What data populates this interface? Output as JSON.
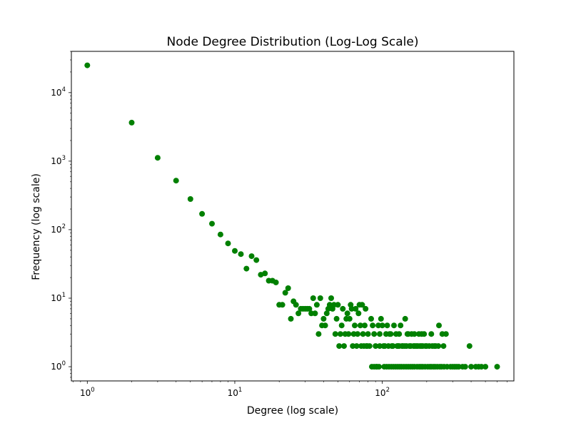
{
  "chart_data": {
    "type": "scatter",
    "title": "Node Degree Distribution (Log-Log Scale)",
    "xlabel": "Degree (log scale)",
    "ylabel": "Frequency (log scale)",
    "x_scale": "log",
    "y_scale": "log",
    "xlim": [
      0.78,
      780
    ],
    "ylim": [
      0.62,
      40000
    ],
    "grid": false,
    "marker_color": "#008000",
    "x_ticks": [
      {
        "base": "10",
        "exp": "0",
        "value": 1
      },
      {
        "base": "10",
        "exp": "1",
        "value": 10
      },
      {
        "base": "10",
        "exp": "2",
        "value": 100
      }
    ],
    "y_ticks": [
      {
        "base": "10",
        "exp": "0",
        "value": 1
      },
      {
        "base": "10",
        "exp": "1",
        "value": 10
      },
      {
        "base": "10",
        "exp": "2",
        "value": 100
      },
      {
        "base": "10",
        "exp": "3",
        "value": 1000
      },
      {
        "base": "10",
        "exp": "4",
        "value": 10000
      }
    ],
    "points": [
      [
        1,
        25000
      ],
      [
        2,
        3650
      ],
      [
        3,
        1120
      ],
      [
        4,
        520
      ],
      [
        5,
        280
      ],
      [
        6,
        170
      ],
      [
        7,
        122
      ],
      [
        8,
        85
      ],
      [
        9,
        63
      ],
      [
        10,
        49
      ],
      [
        11,
        44
      ],
      [
        12,
        27
      ],
      [
        13,
        41
      ],
      [
        14,
        36
      ],
      [
        15,
        22
      ],
      [
        16,
        23
      ],
      [
        17,
        18
      ],
      [
        18,
        18
      ],
      [
        19,
        17
      ],
      [
        20,
        8
      ],
      [
        21,
        8
      ],
      [
        22,
        12
      ],
      [
        23,
        14
      ],
      [
        24,
        5
      ],
      [
        25,
        9
      ],
      [
        26,
        8
      ],
      [
        27,
        6
      ],
      [
        28,
        7
      ],
      [
        29,
        7
      ],
      [
        30,
        7
      ],
      [
        31,
        7
      ],
      [
        32,
        7
      ],
      [
        33,
        6
      ],
      [
        34,
        10
      ],
      [
        35,
        6
      ],
      [
        36,
        8
      ],
      [
        37,
        3
      ],
      [
        38,
        10
      ],
      [
        39,
        4
      ],
      [
        40,
        5
      ],
      [
        41,
        4
      ],
      [
        42,
        6
      ],
      [
        43,
        7
      ],
      [
        44,
        8
      ],
      [
        45,
        10
      ],
      [
        46,
        7
      ],
      [
        47,
        8
      ],
      [
        48,
        3
      ],
      [
        49,
        5
      ],
      [
        50,
        8
      ],
      [
        51,
        2
      ],
      [
        52,
        3
      ],
      [
        53,
        4
      ],
      [
        54,
        7
      ],
      [
        55,
        2
      ],
      [
        56,
        3
      ],
      [
        57,
        5
      ],
      [
        58,
        6
      ],
      [
        59,
        3
      ],
      [
        60,
        5
      ],
      [
        61,
        8
      ],
      [
        62,
        7
      ],
      [
        63,
        2
      ],
      [
        64,
        3
      ],
      [
        65,
        4
      ],
      [
        66,
        7
      ],
      [
        67,
        2
      ],
      [
        68,
        3
      ],
      [
        69,
        6
      ],
      [
        70,
        8
      ],
      [
        71,
        4
      ],
      [
        72,
        2
      ],
      [
        73,
        8
      ],
      [
        74,
        3
      ],
      [
        75,
        2
      ],
      [
        76,
        4
      ],
      [
        77,
        7
      ],
      [
        78,
        2
      ],
      [
        79,
        2
      ],
      [
        80,
        3
      ],
      [
        82,
        2
      ],
      [
        84,
        5
      ],
      [
        86,
        4
      ],
      [
        88,
        3
      ],
      [
        90,
        2
      ],
      [
        92,
        1
      ],
      [
        94,
        4
      ],
      [
        96,
        2
      ],
      [
        98,
        5
      ],
      [
        100,
        4
      ],
      [
        104,
        2
      ],
      [
        108,
        4
      ],
      [
        112,
        3
      ],
      [
        116,
        2
      ],
      [
        120,
        4
      ],
      [
        124,
        3
      ],
      [
        128,
        2
      ],
      [
        133,
        4
      ],
      [
        138,
        2
      ],
      [
        143,
        5
      ],
      [
        148,
        3
      ],
      [
        153,
        2
      ],
      [
        158,
        3
      ],
      [
        163,
        2
      ],
      [
        170,
        2
      ],
      [
        177,
        3
      ],
      [
        184,
        2
      ],
      [
        192,
        3
      ],
      [
        200,
        2
      ],
      [
        208,
        2
      ],
      [
        218,
        2
      ],
      [
        230,
        2
      ],
      [
        242,
        4
      ],
      [
        255,
        3
      ],
      [
        270,
        3
      ],
      [
        290,
        1
      ],
      [
        320,
        1
      ],
      [
        350,
        1
      ],
      [
        390,
        2
      ],
      [
        85,
        1
      ],
      [
        88,
        1
      ],
      [
        91,
        1
      ],
      [
        95,
        1
      ],
      [
        103,
        1
      ],
      [
        107,
        1
      ],
      [
        111,
        1
      ],
      [
        115,
        1
      ],
      [
        119,
        1
      ],
      [
        123,
        1
      ],
      [
        127,
        1
      ],
      [
        131,
        1
      ],
      [
        135,
        1
      ],
      [
        140,
        1
      ],
      [
        145,
        1
      ],
      [
        150,
        1
      ],
      [
        155,
        1
      ],
      [
        160,
        1
      ],
      [
        165,
        1
      ],
      [
        172,
        1
      ],
      [
        178,
        1
      ],
      [
        183,
        1
      ],
      [
        188,
        1
      ],
      [
        195,
        1
      ],
      [
        203,
        1
      ],
      [
        210,
        1
      ],
      [
        215,
        1
      ],
      [
        222,
        1
      ],
      [
        228,
        1
      ],
      [
        236,
        1
      ],
      [
        245,
        1
      ],
      [
        252,
        1
      ],
      [
        262,
        1
      ],
      [
        275,
        1
      ],
      [
        300,
        1
      ],
      [
        310,
        1
      ],
      [
        330,
        1
      ],
      [
        365,
        1
      ],
      [
        400,
        1
      ],
      [
        430,
        1
      ],
      [
        450,
        1
      ],
      [
        470,
        1
      ],
      [
        500,
        1
      ],
      [
        600,
        1
      ],
      [
        102,
        2
      ],
      [
        110,
        2
      ],
      [
        118,
        2
      ],
      [
        126,
        2
      ],
      [
        136,
        2
      ],
      [
        146,
        2
      ],
      [
        156,
        2
      ],
      [
        166,
        2
      ],
      [
        180,
        2
      ],
      [
        196,
        2
      ],
      [
        225,
        2
      ],
      [
        240,
        2
      ],
      [
        106,
        3
      ],
      [
        114,
        3
      ],
      [
        130,
        3
      ],
      [
        150,
        3
      ],
      [
        165,
        3
      ],
      [
        185,
        3
      ],
      [
        215,
        3
      ],
      [
        96,
        3
      ],
      [
        130,
        2
      ],
      [
        142,
        2
      ],
      [
        174,
        2
      ],
      [
        188,
        2
      ],
      [
        260,
        2
      ]
    ]
  }
}
